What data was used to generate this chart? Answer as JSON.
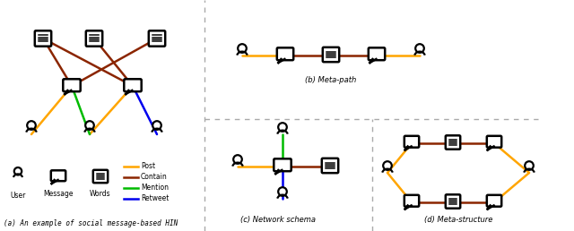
{
  "fig_width": 6.4,
  "fig_height": 2.58,
  "dpi": 100,
  "bg_color": "#ffffff",
  "colors": {
    "post": "#FFA500",
    "contain": "#8B2500",
    "mention": "#00BB00",
    "retweet": "#0000EE",
    "divider": "#aaaaaa"
  },
  "section_a_title": "(a) An example of social message-based HIN",
  "section_b_title": "(b) Meta-path",
  "section_c_title": "(c) Network schema",
  "section_d_title": "(d) Meta-structure"
}
